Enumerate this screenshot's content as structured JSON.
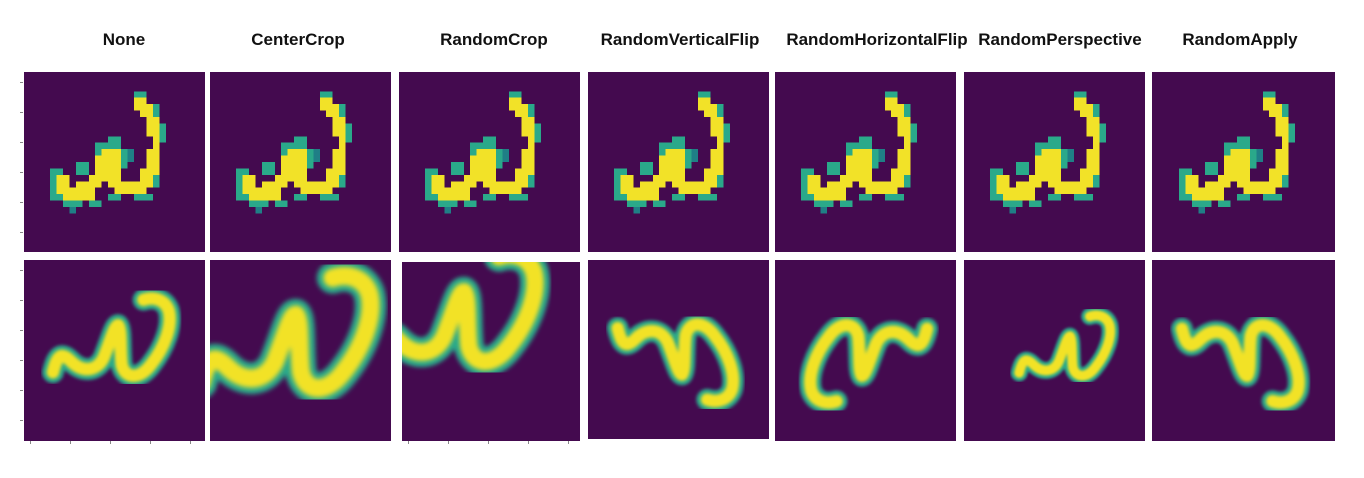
{
  "columns": [
    {
      "label": "None"
    },
    {
      "label": "CenterCrop"
    },
    {
      "label": "RandomCrop"
    },
    {
      "label": "RandomVerticalFlip"
    },
    {
      "label": "RandomHorizontalFlip"
    },
    {
      "label": "RandomPerspective"
    },
    {
      "label": "RandomApply"
    }
  ],
  "colors": {
    "background": "#440a4f",
    "stroke_main": "#f2e228",
    "stroke_edge": "#2aa98a",
    "stroke_edge_dark": "#1f7f86"
  },
  "rows": [
    {
      "style": "pixelated",
      "description_icon": "handwritten-omega-glyph"
    },
    {
      "style": "smooth",
      "description_icon": "handwritten-omega-glyph"
    }
  ]
}
